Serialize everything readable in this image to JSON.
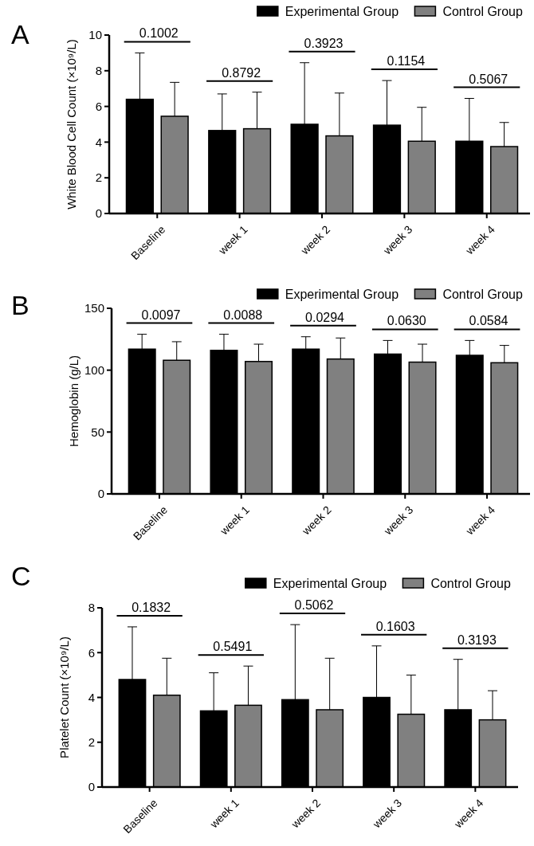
{
  "chart_data": [
    {
      "type": "bar",
      "title": "A",
      "ylabel": "White Blood Cell Count (×10⁹/L)",
      "categories": [
        "Baseline",
        "week 1",
        "week 2",
        "week 3",
        "week 4"
      ],
      "ylim": [
        0,
        10
      ],
      "yticks": [
        0,
        2,
        4,
        6,
        8,
        10
      ],
      "legend": "top right",
      "grid": false,
      "series": [
        {
          "name": "Experimental Group",
          "color": "#000000",
          "values": [
            6.4,
            4.65,
            5.0,
            4.95,
            4.05
          ],
          "errors": [
            [
              6.4,
              9.0
            ],
            [
              4.65,
              6.7
            ],
            [
              5.0,
              8.45
            ],
            [
              4.95,
              7.45
            ],
            [
              4.05,
              6.45
            ]
          ]
        },
        {
          "name": "Control Group",
          "color": "#808080",
          "values": [
            5.45,
            4.75,
            4.35,
            4.05,
            3.75
          ],
          "errors": [
            [
              5.45,
              7.35
            ],
            [
              4.75,
              6.8
            ],
            [
              4.35,
              6.75
            ],
            [
              4.05,
              5.95
            ],
            [
              3.75,
              5.1
            ]
          ]
        }
      ],
      "annotations": [
        "0.1002",
        "0.8792",
        "0.3923",
        "0.1154",
        "0.5067"
      ]
    },
    {
      "type": "bar",
      "title": "B",
      "ylabel": "Hemoglobin (g/L)",
      "categories": [
        "Baseline",
        "week 1",
        "week 2",
        "week 3",
        "week 4"
      ],
      "ylim": [
        0,
        150
      ],
      "yticks": [
        0,
        50,
        100,
        150
      ],
      "legend": "top right",
      "grid": false,
      "series": [
        {
          "name": "Experimental Group",
          "color": "#000000",
          "values": [
            117,
            116,
            117,
            113,
            112
          ],
          "errors": [
            [
              117,
              129
            ],
            [
              116,
              129
            ],
            [
              117,
              127
            ],
            [
              113,
              124
            ],
            [
              112,
              124
            ]
          ]
        },
        {
          "name": "Control Group",
          "color": "#808080",
          "values": [
            108,
            107,
            109,
            106.5,
            106
          ],
          "errors": [
            [
              108,
              123
            ],
            [
              107,
              121
            ],
            [
              109,
              126
            ],
            [
              106.5,
              121
            ],
            [
              106,
              120
            ]
          ]
        }
      ],
      "annotations": [
        "0.0097",
        "0.0088",
        "0.0294",
        "0.0630",
        "0.0584"
      ]
    },
    {
      "type": "bar",
      "title": "C",
      "ylabel": "Platelet Count (×10⁹/L)",
      "categories": [
        "Baseline",
        "week 1",
        "week 2",
        "week 3",
        "week 4"
      ],
      "ylim": [
        0,
        8
      ],
      "yticks": [
        0,
        2,
        4,
        6,
        8
      ],
      "legend": "top right",
      "grid": false,
      "series": [
        {
          "name": "Experimental Group",
          "color": "#000000",
          "values": [
            4.8,
            3.4,
            3.9,
            4.0,
            3.45
          ],
          "errors": [
            [
              4.8,
              7.15
            ],
            [
              3.4,
              5.1
            ],
            [
              3.9,
              7.25
            ],
            [
              4.0,
              6.3
            ],
            [
              3.45,
              5.7
            ]
          ]
        },
        {
          "name": "Control Group",
          "color": "#808080",
          "values": [
            4.1,
            3.65,
            3.45,
            3.25,
            3.0
          ],
          "errors": [
            [
              4.1,
              5.75
            ],
            [
              3.65,
              5.4
            ],
            [
              3.45,
              5.75
            ],
            [
              3.25,
              5.0
            ],
            [
              3.0,
              4.3
            ]
          ]
        }
      ],
      "annotations": [
        "0.1832",
        "0.5491",
        "0.5062",
        "0.1603",
        "0.3193"
      ]
    }
  ]
}
